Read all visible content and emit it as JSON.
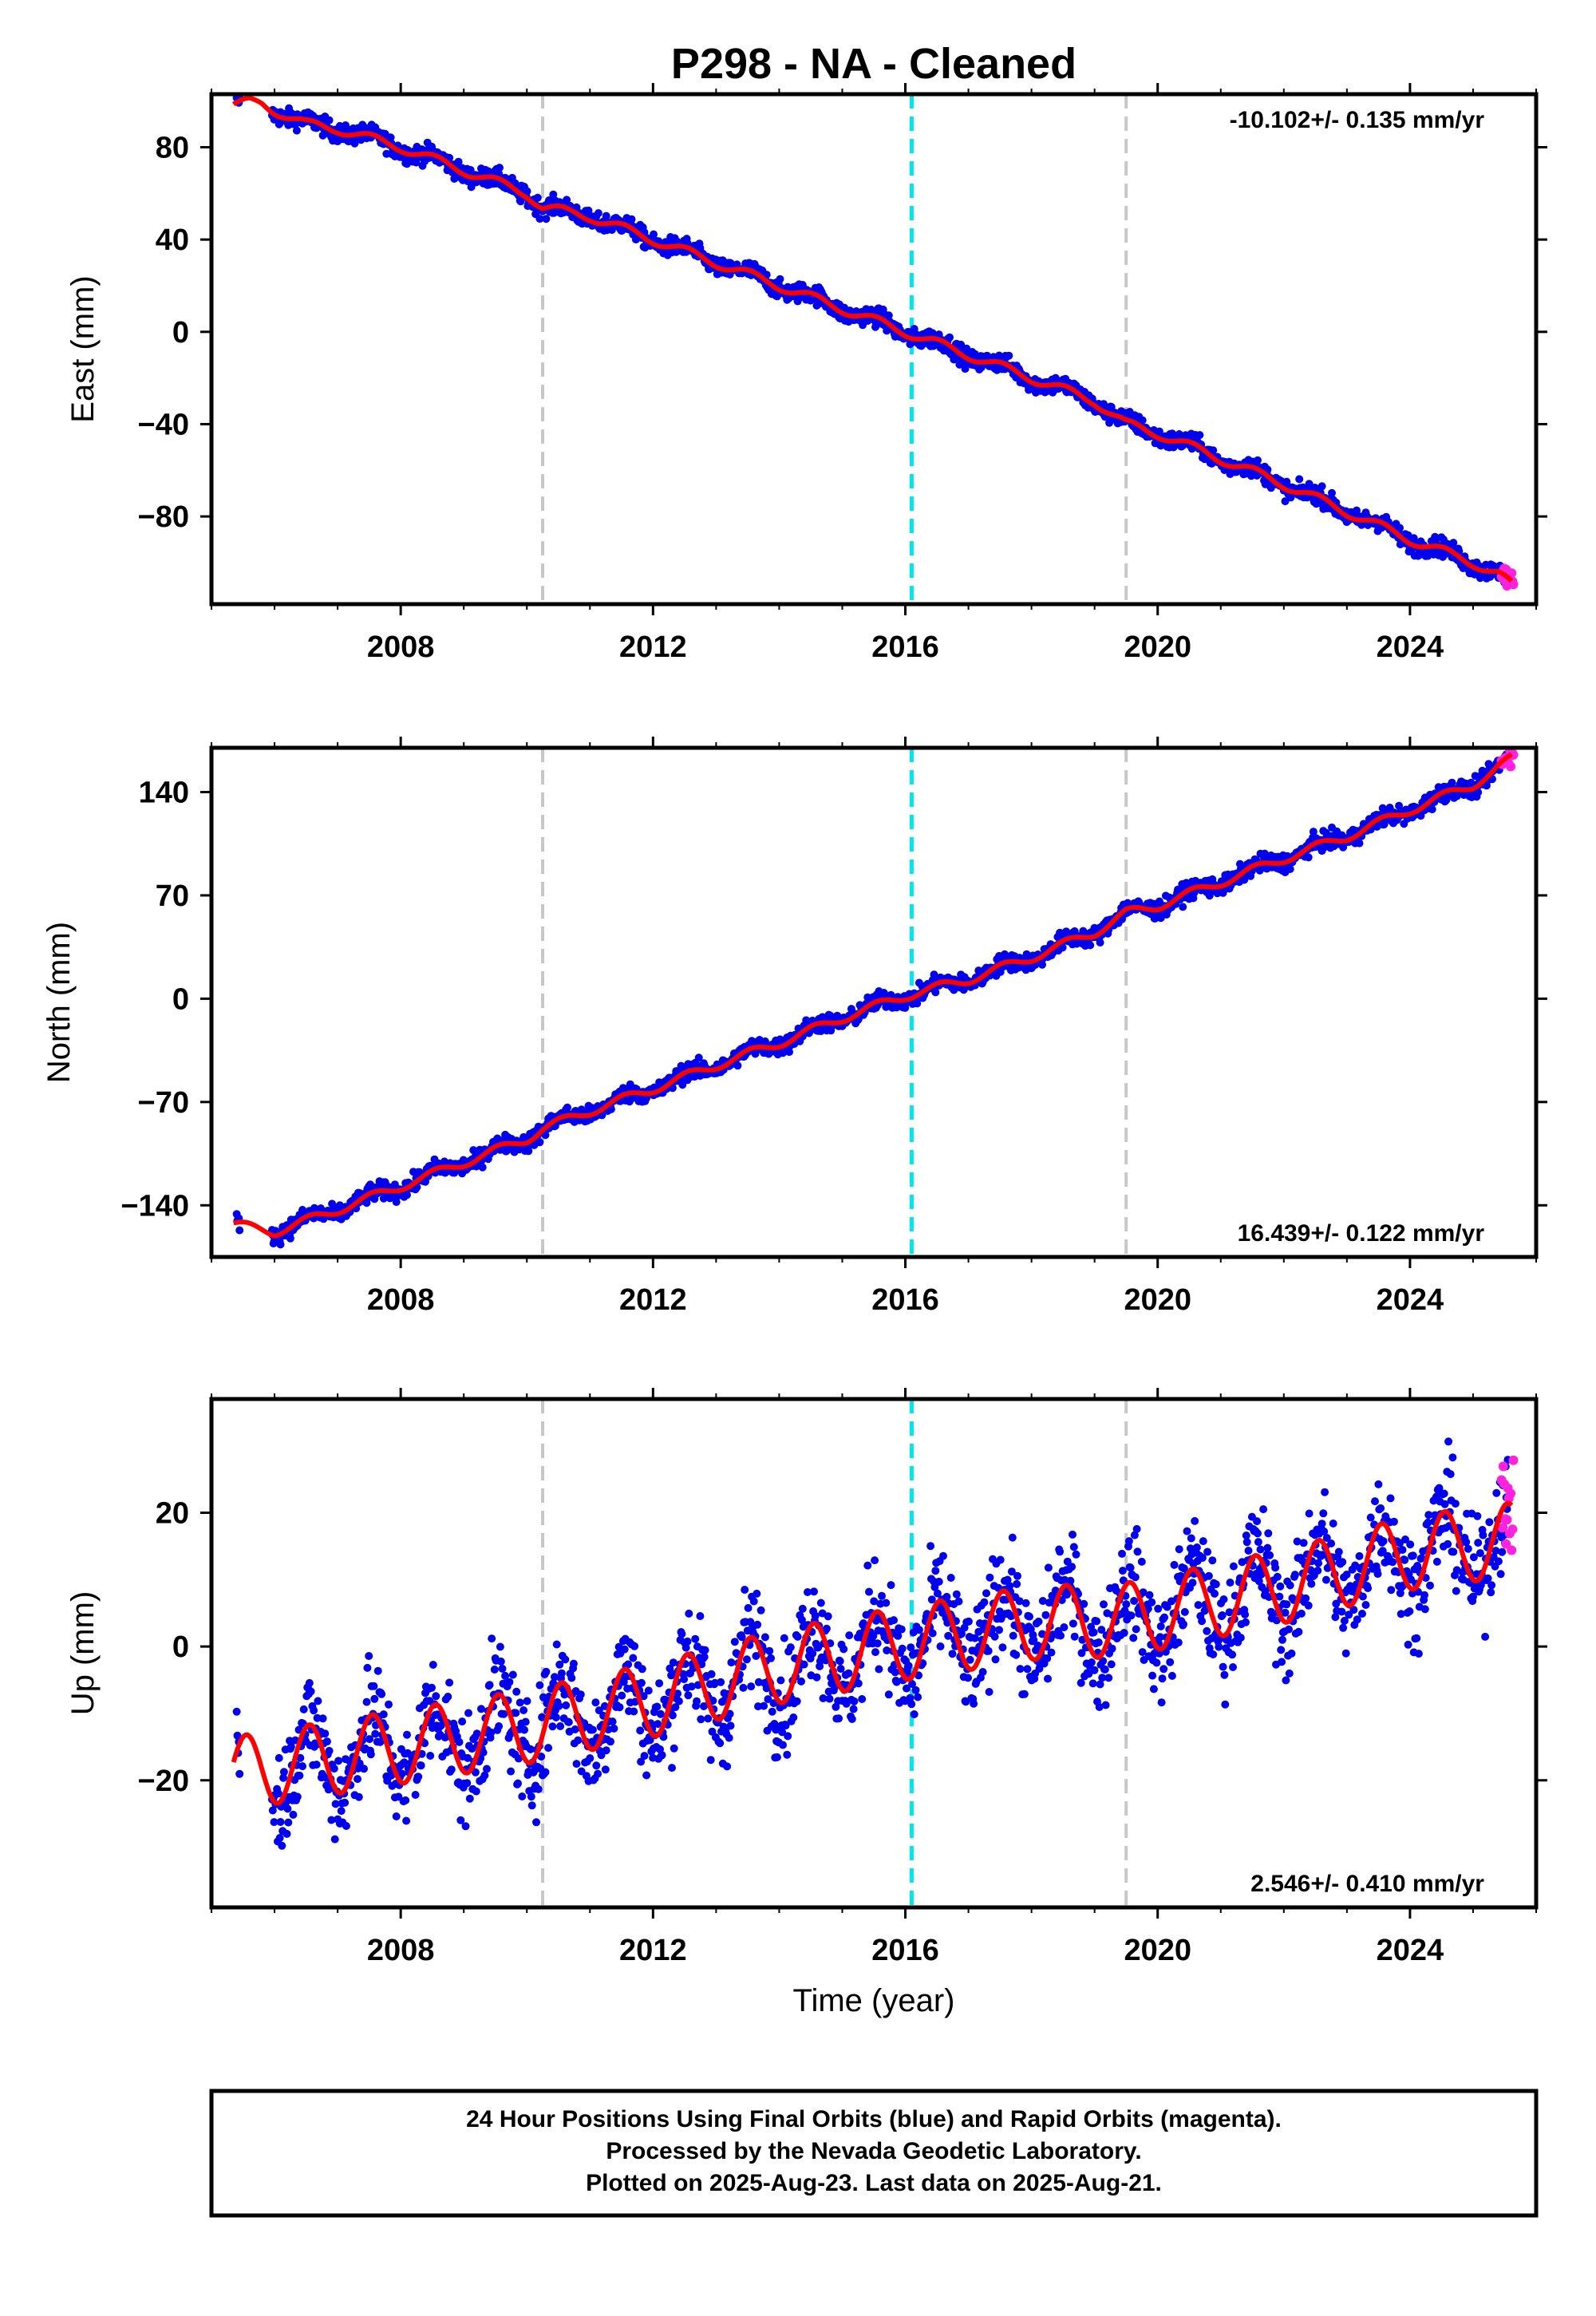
{
  "title": "P298  - NA - Cleaned",
  "xlabel": "Time (year)",
  "info_lines": [
    "24 Hour Positions Using Final Orbits (blue) and Rapid Orbits (magenta).",
    "Processed by the Nevada Geodetic Laboratory.",
    "Plotted on 2025-Aug-23. Last data on 2025-Aug-21."
  ],
  "colors": {
    "final_orbits": "#0000ee",
    "rapid_orbits": "#ff22dd",
    "model": "#ff0000",
    "reference_line": "#00e5ee",
    "event_line": "#c8c8c8"
  },
  "chart_data": [
    {
      "type": "scatter",
      "component": "east",
      "ylabel": "East (mm)",
      "rate_label": "-10.102+/- 0.135 mm/yr",
      "rate_label_position": "top-right",
      "xlim": [
        2005.0,
        2026.0
      ],
      "ylim": [
        -118,
        103
      ],
      "x_ticks": [
        2008,
        2012,
        2016,
        2020,
        2024
      ],
      "y_ticks": [
        80,
        40,
        0,
        -40,
        -80
      ],
      "y_tick_labels": [
        "80",
        "40",
        "0",
        "−40",
        "−80"
      ],
      "reference_line_year": 2016.1,
      "event_line_years": [
        2010.25,
        2019.5
      ],
      "data_span": [
        2005.4,
        2025.55
      ],
      "rapid_orbit_span": [
        2025.45,
        2025.64
      ],
      "model_points": [
        [
          2005.35,
          98.0
        ],
        [
          2005.6,
          99.5
        ],
        [
          2005.8,
          99.0
        ],
        [
          2006.0,
          96.0
        ],
        [
          2006.5,
          90.0
        ],
        [
          2007.0,
          88.0
        ],
        [
          2008.0,
          80.0
        ],
        [
          2009.0,
          70.0
        ],
        [
          2010.0,
          60.0
        ],
        [
          2010.25,
          54.0
        ],
        [
          2011.0,
          50.0
        ],
        [
          2012.0,
          40.0
        ],
        [
          2013.0,
          30.0
        ],
        [
          2014.0,
          20.0
        ],
        [
          2015.0,
          10.0
        ],
        [
          2016.0,
          0.0
        ],
        [
          2017.0,
          -10.0
        ],
        [
          2018.0,
          -20.0
        ],
        [
          2019.0,
          -30.0
        ],
        [
          2019.5,
          -40.0
        ],
        [
          2020.0,
          -44.0
        ],
        [
          2021.0,
          -55.0
        ],
        [
          2022.0,
          -66.0
        ],
        [
          2023.0,
          -78.0
        ],
        [
          2024.0,
          -90.0
        ],
        [
          2025.0,
          -100.0
        ],
        [
          2025.4,
          -105.0
        ],
        [
          2025.62,
          -110.0
        ]
      ],
      "annual_amplitude": 2.0,
      "scatter_noise": 2.0
    },
    {
      "type": "scatter",
      "component": "north",
      "ylabel": "North (mm)",
      "rate_label": "16.439+/- 0.122 mm/yr",
      "rate_label_position": "bottom-right",
      "xlim": [
        2005.0,
        2026.0
      ],
      "ylim": [
        -175,
        170
      ],
      "x_ticks": [
        2008,
        2012,
        2016,
        2020,
        2024
      ],
      "y_ticks": [
        140,
        70,
        0,
        -70,
        -140
      ],
      "y_tick_labels": [
        "140",
        "70",
        "0",
        "−70",
        "−140"
      ],
      "reference_line_year": 2016.1,
      "event_line_years": [
        2010.25,
        2019.5
      ],
      "data_span": [
        2005.4,
        2025.55
      ],
      "rapid_orbit_span": [
        2025.45,
        2025.64
      ],
      "model_points": [
        [
          2005.35,
          -153.0
        ],
        [
          2006.0,
          -158.0
        ],
        [
          2007.0,
          -143.0
        ],
        [
          2008.0,
          -127.0
        ],
        [
          2009.0,
          -111.0
        ],
        [
          2010.0,
          -95.0
        ],
        [
          2010.25,
          -88.0
        ],
        [
          2011.0,
          -76.0
        ],
        [
          2012.0,
          -61.0
        ],
        [
          2013.0,
          -45.0
        ],
        [
          2014.0,
          -30.0
        ],
        [
          2015.0,
          -13.0
        ],
        [
          2016.0,
          2.0
        ],
        [
          2017.0,
          13.0
        ],
        [
          2018.0,
          28.0
        ],
        [
          2019.0,
          45.0
        ],
        [
          2019.5,
          58.0
        ],
        [
          2020.0,
          63.0
        ],
        [
          2021.0,
          79.0
        ],
        [
          2022.0,
          95.0
        ],
        [
          2023.0,
          110.0
        ],
        [
          2024.0,
          128.0
        ],
        [
          2025.0,
          145.0
        ],
        [
          2025.62,
          163.0
        ]
      ],
      "annual_amplitude": 3.0,
      "scatter_noise": 3.0
    },
    {
      "type": "scatter",
      "component": "up",
      "ylabel": "Up (mm)",
      "rate_label": "2.546+/- 0.410 mm/yr",
      "rate_label_position": "bottom-right",
      "xlim": [
        2005.0,
        2026.0
      ],
      "ylim": [
        -39,
        37
      ],
      "x_ticks": [
        2008,
        2012,
        2016,
        2020,
        2024
      ],
      "y_ticks": [
        20,
        0,
        -20
      ],
      "y_tick_labels": [
        "20",
        "0",
        "−20"
      ],
      "reference_line_year": 2016.1,
      "event_line_years": [
        2010.25,
        2019.5
      ],
      "data_span": [
        2005.4,
        2025.55
      ],
      "rapid_orbit_span": [
        2025.45,
        2025.64
      ],
      "model_points": [
        [
          2005.35,
          -19.0
        ],
        [
          2008.0,
          -15.0
        ],
        [
          2010.0,
          -12.0
        ],
        [
          2012.0,
          -8.0
        ],
        [
          2014.0,
          -3.0
        ],
        [
          2016.0,
          0.5
        ],
        [
          2018.0,
          3.5
        ],
        [
          2019.5,
          4.0
        ],
        [
          2020.0,
          5.0
        ],
        [
          2022.0,
          9.0
        ],
        [
          2024.0,
          14.0
        ],
        [
          2025.62,
          16.0
        ]
      ],
      "annual_amplitude": 5.5,
      "scatter_noise": 4.0
    }
  ]
}
